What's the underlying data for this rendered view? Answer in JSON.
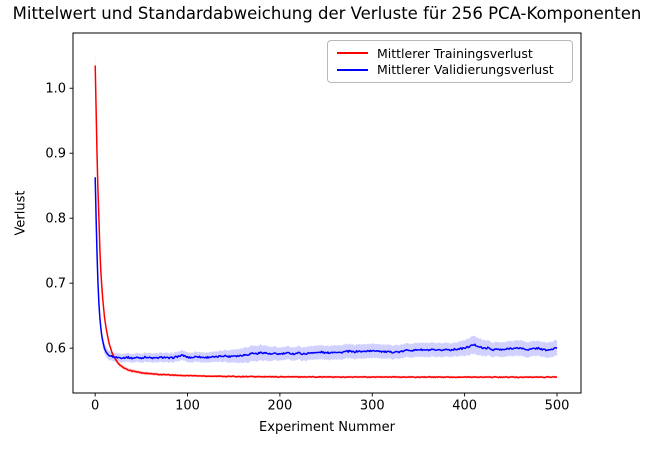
{
  "title": "Mittelwert und Standardabweichung der Verluste für 256 PCA-Komponenten",
  "axes": {
    "xlabel": "Experiment Nummer",
    "ylabel": "Verlust"
  },
  "legend": {
    "entries": [
      {
        "label": "Mittlerer Trainingsverlust",
        "color": "#ff0000"
      },
      {
        "label": "Mittlerer Validierungsverlust",
        "color": "#0000ff"
      }
    ]
  },
  "chart_data": {
    "type": "line",
    "title": "Mittelwert und Standardabweichung der Verluste für 256 PCA-Komponenten",
    "xlabel": "Experiment Nummer",
    "ylabel": "Verlust",
    "xlim": [
      -24,
      526
    ],
    "ylim": [
      0.531,
      1.085
    ],
    "x_ticks": [
      0,
      100,
      200,
      300,
      400,
      500
    ],
    "y_ticks": [
      0.6,
      0.7,
      0.8,
      0.9,
      1.0
    ],
    "grid": false,
    "legend_position": "upper right",
    "band_alpha": 0.18,
    "series": [
      {
        "id": "train-loss",
        "name": "Mittlerer Trainingsverlust",
        "color": "#ff0000",
        "band_color": "rgba(255,0,0,0.18)",
        "noise": 0.0006,
        "noise_from_x": 25,
        "x": [
          0,
          1,
          2,
          3,
          4,
          5,
          6,
          8,
          10,
          12,
          15,
          18,
          20,
          25,
          30,
          35,
          40,
          50,
          60,
          70,
          80,
          90,
          100,
          120,
          140,
          160,
          180,
          200,
          220,
          240,
          260,
          280,
          300,
          320,
          340,
          360,
          380,
          400,
          420,
          440,
          460,
          480,
          500
        ],
        "mean": [
          1.035,
          0.968,
          0.9,
          0.845,
          0.8,
          0.755,
          0.722,
          0.678,
          0.649,
          0.629,
          0.608,
          0.594,
          0.5875,
          0.5765,
          0.5705,
          0.5672,
          0.5648,
          0.5622,
          0.5605,
          0.5595,
          0.5588,
          0.5582,
          0.5578,
          0.5571,
          0.5566,
          0.5563,
          0.556,
          0.5559,
          0.5558,
          0.5558,
          0.5556,
          0.5555,
          0.5556,
          0.5556,
          0.5554,
          0.5556,
          0.5553,
          0.5555,
          0.5553,
          0.5554,
          0.5553,
          0.5554,
          0.5556
        ],
        "std_x": [
          0,
          2,
          4,
          6,
          10,
          15,
          20,
          30,
          50,
          100,
          200,
          300,
          400,
          500
        ],
        "std": [
          0.026,
          0.016,
          0.011,
          0.008,
          0.005,
          0.004,
          0.0035,
          0.003,
          0.0025,
          0.002,
          0.002,
          0.002,
          0.002,
          0.002
        ]
      },
      {
        "id": "val-loss",
        "name": "Mittlerer Validierungsverlust",
        "color": "#0000ff",
        "band_color": "rgba(0,0,255,0.18)",
        "noise": 0.0013,
        "noise_from_x": 18,
        "x": [
          0,
          1,
          2,
          3,
          4,
          5,
          6,
          7,
          8,
          10,
          12,
          15,
          20,
          25,
          30,
          35,
          40,
          45,
          50,
          55,
          60,
          65,
          70,
          75,
          80,
          85,
          90,
          95,
          100,
          105,
          110,
          115,
          120,
          125,
          130,
          135,
          140,
          145,
          150,
          155,
          160,
          165,
          170,
          175,
          180,
          185,
          190,
          195,
          200,
          205,
          210,
          215,
          220,
          225,
          230,
          235,
          240,
          245,
          250,
          255,
          260,
          265,
          270,
          275,
          280,
          285,
          290,
          295,
          300,
          305,
          310,
          315,
          320,
          325,
          330,
          335,
          340,
          345,
          350,
          355,
          360,
          365,
          370,
          375,
          380,
          385,
          390,
          395,
          400,
          405,
          410,
          415,
          420,
          425,
          430,
          435,
          440,
          445,
          450,
          455,
          460,
          465,
          470,
          475,
          480,
          485,
          490,
          495,
          500
        ],
        "mean": [
          0.863,
          0.8,
          0.747,
          0.703,
          0.669,
          0.648,
          0.633,
          0.621,
          0.612,
          0.6,
          0.5935,
          0.5885,
          0.5865,
          0.5855,
          0.5852,
          0.586,
          0.5845,
          0.5856,
          0.585,
          0.5864,
          0.585,
          0.5846,
          0.5855,
          0.586,
          0.5844,
          0.5856,
          0.5874,
          0.589,
          0.586,
          0.5856,
          0.5874,
          0.586,
          0.5856,
          0.5866,
          0.586,
          0.5875,
          0.5884,
          0.587,
          0.5886,
          0.588,
          0.5894,
          0.59,
          0.5924,
          0.5914,
          0.5934,
          0.5924,
          0.5906,
          0.5916,
          0.5908,
          0.5918,
          0.5924,
          0.5912,
          0.5928,
          0.591,
          0.5918,
          0.5934,
          0.5928,
          0.594,
          0.5924,
          0.5934,
          0.5944,
          0.593,
          0.5944,
          0.5952,
          0.594,
          0.5954,
          0.5944,
          0.596,
          0.5954,
          0.5964,
          0.595,
          0.5942,
          0.5938,
          0.5944,
          0.594,
          0.596,
          0.5974,
          0.5964,
          0.598,
          0.5972,
          0.5968,
          0.5974,
          0.5962,
          0.597,
          0.598,
          0.5974,
          0.5984,
          0.599,
          0.6,
          0.6024,
          0.6054,
          0.603,
          0.5996,
          0.6004,
          0.5976,
          0.5984,
          0.5972,
          0.5984,
          0.6,
          0.5994,
          0.6004,
          0.5984,
          0.5978,
          0.5992,
          0.6002,
          0.5976,
          0.5968,
          0.5984,
          0.6005
        ],
        "std_x": [
          0,
          3,
          6,
          10,
          15,
          30,
          60,
          100,
          130,
          150,
          165,
          180,
          200,
          230,
          260,
          300,
          330,
          360,
          390,
          410,
          430,
          460,
          480,
          500
        ],
        "std": [
          0.012,
          0.01,
          0.009,
          0.008,
          0.007,
          0.0065,
          0.007,
          0.0075,
          0.008,
          0.01,
          0.012,
          0.012,
          0.01,
          0.0105,
          0.011,
          0.011,
          0.0105,
          0.011,
          0.0105,
          0.014,
          0.011,
          0.012,
          0.0115,
          0.012
        ]
      }
    ]
  }
}
